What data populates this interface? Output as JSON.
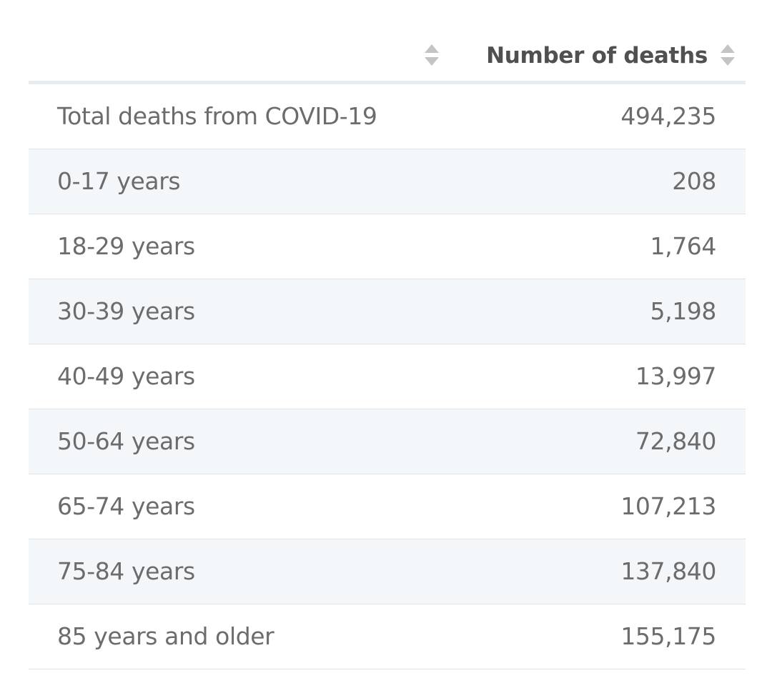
{
  "table": {
    "columns": [
      {
        "label": "",
        "sort_icon": "sort-updown-icon"
      },
      {
        "label": "Number of deaths",
        "sort_icon": "sort-updown-icon"
      }
    ],
    "rows": [
      {
        "label": "Total deaths from COVID-19",
        "value": "494,235"
      },
      {
        "label": "0-17 years",
        "value": "208"
      },
      {
        "label": "18-29 years",
        "value": "1,764"
      },
      {
        "label": "30-39 years",
        "value": "5,198"
      },
      {
        "label": "40-49 years",
        "value": "13,997"
      },
      {
        "label": "50-64 years",
        "value": "72,840"
      },
      {
        "label": "65-74 years",
        "value": "107,213"
      },
      {
        "label": "75-84 years",
        "value": "137,840"
      },
      {
        "label": "85 years and older",
        "value": "155,175"
      }
    ]
  },
  "colors": {
    "header_text": "#505050",
    "cell_text": "#6c6c6c",
    "row_alt_bg": "#f4f7fa",
    "row_border": "#dfe3e8",
    "header_border": "#e9ecef",
    "sort_icon": "#c4c4c4"
  }
}
